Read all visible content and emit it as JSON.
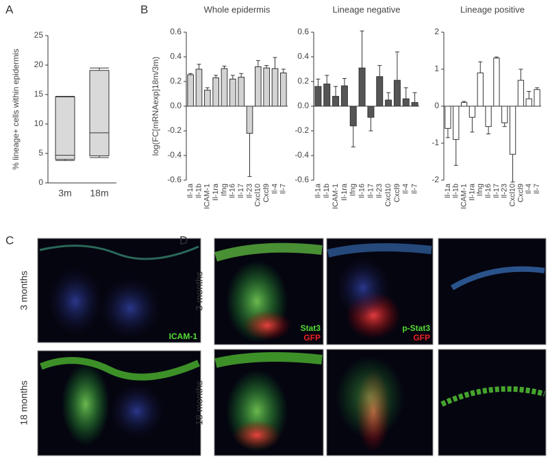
{
  "chart_data": [
    {
      "type": "box",
      "panel": "A",
      "y_label": "% lineage+ cells within epidermis",
      "categories": [
        "3m",
        "18m"
      ],
      "min": [
        3.8,
        4.3
      ],
      "q1": [
        4.0,
        4.6
      ],
      "median": [
        4.7,
        8.5
      ],
      "q3": [
        14.6,
        19.1
      ],
      "max": [
        14.7,
        19.5
      ],
      "color": "#d9d9d9",
      "ylim": [
        0,
        25
      ],
      "yticks": [
        0,
        5,
        10,
        15,
        20,
        25
      ]
    },
    {
      "type": "bar",
      "panel": "B",
      "title": "Whole epidermis",
      "y_label": "log(FC[mRNAexp]18m/3m)",
      "categories": [
        "Il-1a",
        "Il-1b",
        "ICAM-1",
        "Il-1ra",
        "Ifng",
        "Il-16",
        "Il-17",
        "Il-23",
        "Cxcl10",
        "Cxcl9",
        "Il-4",
        "Il-7"
      ],
      "values": [
        0.255,
        0.3,
        0.13,
        0.23,
        0.305,
        0.22,
        0.235,
        -0.22,
        0.32,
        0.31,
        0.305,
        0.27
      ],
      "errors": [
        0.01,
        0.04,
        0.02,
        0.02,
        0.02,
        0.03,
        0.03,
        0.35,
        0.05,
        0.02,
        0.09,
        0.03
      ],
      "color": "#d3d3d3",
      "ylim": [
        -0.6,
        0.6
      ],
      "yticks": [
        -0.6,
        -0.4,
        -0.2,
        {
          "value": 0,
          "label": "0.0"
        },
        0.2,
        0.4,
        0.6
      ]
    },
    {
      "type": "bar",
      "title": "Lineage negative",
      "categories": [
        "Il-1a",
        "Il-1b",
        "ICAM-1",
        "Il-1ra",
        "Ifng",
        "Il-16",
        "Il-17",
        "Il-23",
        "Cxcl10",
        "Cxcl9",
        "Il-4",
        "Il-7"
      ],
      "values": [
        0.16,
        0.18,
        0.08,
        0.165,
        -0.16,
        0.31,
        -0.09,
        0.24,
        0.05,
        0.21,
        0.06,
        0.03
      ],
      "errors": [
        0.06,
        0.07,
        0.08,
        0.06,
        0.17,
        0.3,
        0.11,
        0.09,
        0.06,
        0.23,
        0.09,
        0.08
      ],
      "color": "#555555",
      "ylim": [
        -0.6,
        0.6
      ],
      "yticks": [
        -0.6,
        -0.4,
        -0.2,
        {
          "value": 0,
          "label": "0.0"
        },
        0.2,
        0.4,
        0.6
      ]
    },
    {
      "type": "bar",
      "title": "Lineage positive",
      "categories": [
        "Il-1a",
        "Il-1b",
        "ICAM-1",
        "Il-1ra",
        "Ifng",
        "Il-16",
        "Il-17",
        "Il-23",
        "Cxcl10",
        "Cxcl9",
        "Il-4",
        "Il-7"
      ],
      "values": [
        -0.6,
        -0.9,
        0.1,
        -0.3,
        0.9,
        -0.55,
        1.3,
        -0.45,
        -1.3,
        0.7,
        0.2,
        0.45
      ],
      "errors": [
        0.25,
        0.7,
        0.03,
        0.4,
        0.3,
        0.2,
        0.03,
        0.1,
        0.75,
        0.3,
        0.2,
        0.05
      ],
      "color": "#ffffff",
      "ylim": [
        -2,
        2
      ],
      "yticks": [
        -2,
        -1,
        0,
        1,
        2
      ]
    }
  ],
  "image_panels": [
    {
      "label": "C",
      "rows": [
        "3 months",
        "18 months"
      ],
      "stain": "ICAM-1"
    },
    {
      "label": "D",
      "rows": [
        "3 months",
        "18 months"
      ],
      "stains": [
        [
          "Stat3",
          "GFP"
        ],
        [
          "p-Stat3",
          "GFP"
        ]
      ]
    }
  ]
}
